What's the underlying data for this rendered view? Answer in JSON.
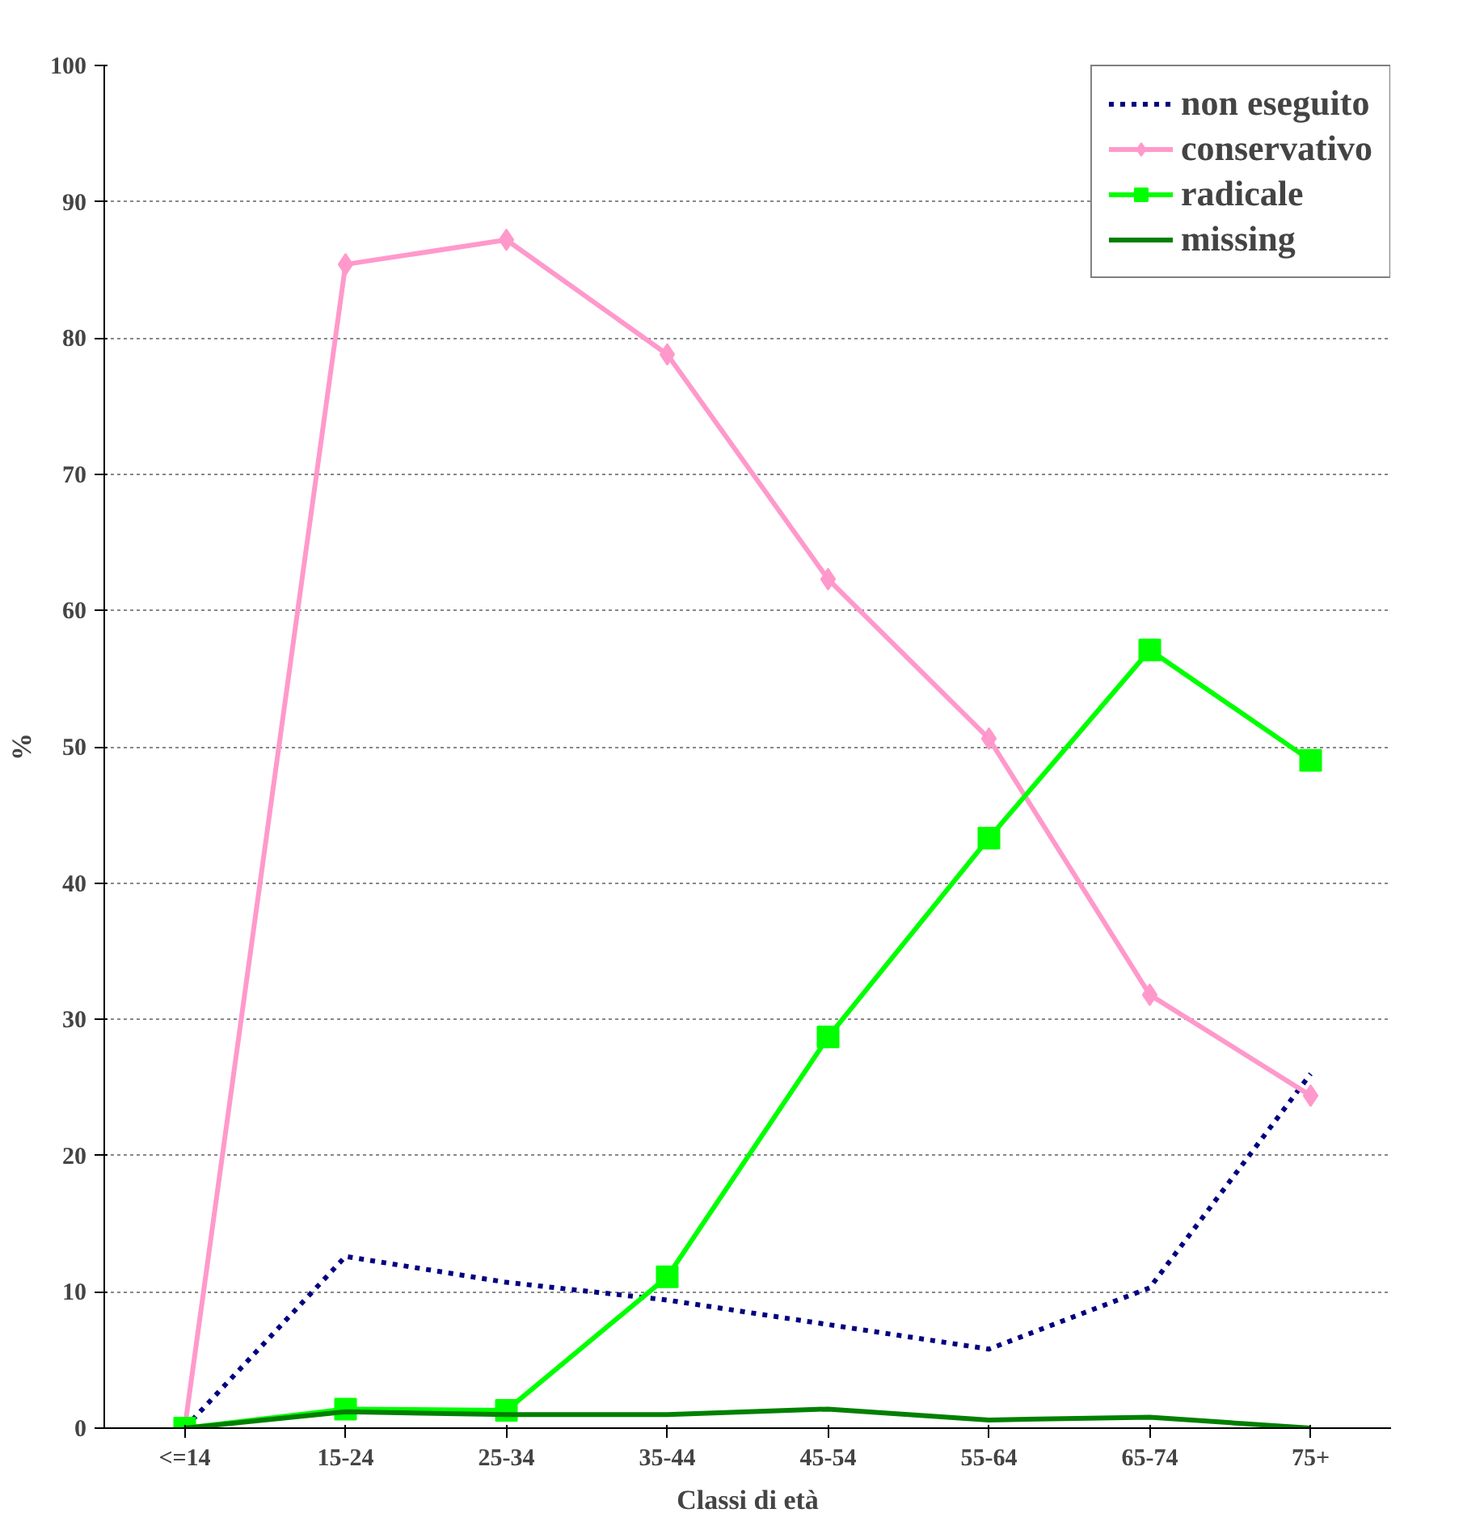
{
  "chart_data": {
    "type": "line",
    "xlabel": "Classi di età",
    "ylabel": "%",
    "categories": [
      "<=14",
      "15-24",
      "25-34",
      "35-44",
      "45-54",
      "55-64",
      "65-74",
      "75+"
    ],
    "ylim": [
      0,
      100
    ],
    "yticks": [
      0,
      10,
      20,
      30,
      40,
      50,
      60,
      70,
      80,
      90,
      100
    ],
    "grid": "y",
    "legend": "top right",
    "series": [
      {
        "name": "non eseguito",
        "color": "#000080",
        "line_style": "dotted",
        "marker": "none",
        "values": [
          0,
          12.6,
          10.7,
          9.4,
          7.6,
          5.8,
          10.3,
          26.0
        ]
      },
      {
        "name": "conservativo",
        "color": "#ff99cc",
        "line_style": "solid",
        "marker": "diamond",
        "values": [
          0,
          85.4,
          87.2,
          78.8,
          62.3,
          50.6,
          31.8,
          24.4
        ]
      },
      {
        "name": "radicale",
        "color": "#00ff00",
        "line_style": "solid",
        "marker": "square",
        "values": [
          0,
          1.4,
          1.3,
          11.1,
          28.7,
          43.3,
          57.1,
          49.0
        ]
      },
      {
        "name": "missing",
        "color": "#008000",
        "line_style": "solid",
        "marker": "none",
        "values": [
          0,
          1.2,
          1.0,
          1.0,
          1.4,
          0.6,
          0.8,
          0
        ]
      }
    ]
  }
}
